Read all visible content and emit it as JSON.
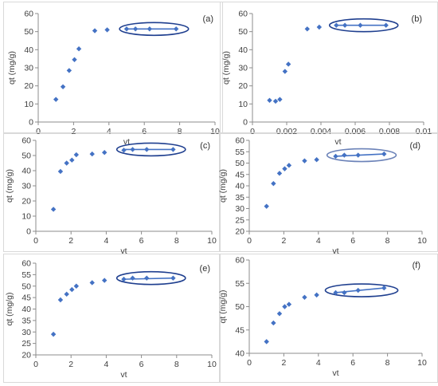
{
  "chart_data": [
    {
      "type": "scatter",
      "panel_label": "(a)",
      "xlabel": "vt",
      "ylabel": "qt (mg/g)",
      "xlim": [
        0,
        10
      ],
      "ylim": [
        0,
        60
      ],
      "xticks": [
        0,
        2,
        4,
        6,
        8,
        10
      ],
      "yticks": [
        0,
        10,
        20,
        30,
        40,
        50,
        60
      ],
      "tick_labels_x": [
        "0",
        "2",
        "4",
        "6",
        "8",
        "10"
      ],
      "tick_labels_y": [
        "0",
        "10",
        "20",
        "30",
        "40",
        "50",
        "60"
      ],
      "x": [
        1.0,
        1.4,
        1.75,
        2.05,
        2.3,
        3.2,
        3.9,
        5.0,
        5.5,
        6.3,
        7.8
      ],
      "y": [
        12.5,
        19.5,
        28.5,
        34.5,
        40.5,
        50.5,
        51,
        51.5,
        51.5,
        51.5,
        51.5
      ],
      "fit_line": {
        "x": [
          5.0,
          7.8
        ],
        "y": [
          51.5,
          51.5
        ]
      },
      "highlight_ellipse": {
        "x_range": [
          4.6,
          8.5
        ],
        "y_center": 51.5
      },
      "color": "#4472c4",
      "ellipse_color": "#1f3f8f",
      "grid": false
    },
    {
      "type": "scatter",
      "panel_label": "(b)",
      "xlabel": "vt",
      "ylabel": "qt (mg/g)",
      "xlim": [
        0,
        0.01
      ],
      "ylim": [
        0,
        60
      ],
      "xticks": [
        0,
        0.002,
        0.004,
        0.006,
        0.008,
        0.01
      ],
      "yticks": [
        0,
        10,
        20,
        30,
        40,
        50,
        60
      ],
      "tick_labels_x": [
        "0",
        "0.002",
        "0.004",
        "0.006",
        "0.008",
        "0.01"
      ],
      "tick_labels_y": [
        "0",
        "10",
        "20",
        "30",
        "40",
        "50",
        "60"
      ],
      "x": [
        0.001,
        0.00135,
        0.0016,
        0.0019,
        0.0021,
        0.0032,
        0.0039,
        0.0049,
        0.0054,
        0.0063,
        0.0078
      ],
      "y": [
        12,
        11.5,
        12.5,
        28,
        32,
        51.5,
        52.5,
        53.5,
        53.5,
        53.5,
        53.5
      ],
      "fit_line": {
        "x": [
          0.0049,
          0.0078
        ],
        "y": [
          53.5,
          53.5
        ]
      },
      "highlight_ellipse": {
        "x_range": [
          0.0045,
          0.0085
        ],
        "y_center": 53.5
      },
      "color": "#4472c4",
      "ellipse_color": "#1f3f8f",
      "grid": false
    },
    {
      "type": "scatter",
      "panel_label": "(c)",
      "xlabel": "vt",
      "ylabel": "qt (mg/g)",
      "xlim": [
        0,
        10
      ],
      "ylim": [
        0,
        60
      ],
      "xticks": [
        0,
        2,
        4,
        6,
        8,
        10
      ],
      "yticks": [
        0,
        10,
        20,
        30,
        40,
        50,
        60
      ],
      "tick_labels_x": [
        "0",
        "2",
        "4",
        "6",
        "8",
        "10"
      ],
      "tick_labels_y": [
        "0",
        "10",
        "20",
        "30",
        "40",
        "50",
        "60"
      ],
      "x": [
        1.0,
        1.4,
        1.75,
        2.05,
        2.3,
        3.2,
        3.9,
        5.0,
        5.5,
        6.3,
        7.8
      ],
      "y": [
        14.5,
        39.5,
        45,
        47,
        50.5,
        51,
        52,
        53.5,
        54,
        54,
        54
      ],
      "fit_line": {
        "x": [
          5.0,
          7.8
        ],
        "y": [
          54,
          54
        ]
      },
      "highlight_ellipse": {
        "x_range": [
          4.6,
          8.5
        ],
        "y_center": 54
      },
      "color": "#4472c4",
      "ellipse_color": "#1f3f8f",
      "grid": false
    },
    {
      "type": "scatter",
      "panel_label": "(d)",
      "xlabel": "vt",
      "ylabel": "qt (mg/g)",
      "xlim": [
        0,
        10
      ],
      "ylim": [
        20,
        60
      ],
      "xticks": [
        0,
        2,
        4,
        6,
        8,
        10
      ],
      "yticks": [
        20,
        25,
        30,
        35,
        40,
        45,
        50,
        55,
        60
      ],
      "tick_labels_x": [
        "0",
        "2",
        "4",
        "6",
        "8",
        "10"
      ],
      "tick_labels_y": [
        "20",
        "25",
        "30",
        "35",
        "40",
        "45",
        "50",
        "55",
        "60"
      ],
      "x": [
        1.0,
        1.4,
        1.75,
        2.05,
        2.3,
        3.2,
        3.9,
        5.0,
        5.5,
        6.3,
        7.8
      ],
      "y": [
        31,
        41,
        45.5,
        47.5,
        49,
        51,
        51.5,
        53,
        53.5,
        53.5,
        54
      ],
      "fit_line": {
        "x": [
          5.0,
          7.8
        ],
        "y": [
          53,
          54
        ]
      },
      "highlight_ellipse": {
        "x_range": [
          4.5,
          8.5
        ],
        "y_center": 53.5
      },
      "color": "#4472c4",
      "ellipse_color": "#6b82b8",
      "grid": false
    },
    {
      "type": "scatter",
      "panel_label": "(e)",
      "xlabel": "vt",
      "ylabel": "qt (mg/g)",
      "xlim": [
        0,
        10
      ],
      "ylim": [
        20,
        60
      ],
      "xticks": [
        0,
        2,
        4,
        6,
        8,
        10
      ],
      "yticks": [
        20,
        25,
        30,
        35,
        40,
        45,
        50,
        55,
        60
      ],
      "tick_labels_x": [
        "0",
        "2",
        "4",
        "6",
        "8",
        "10"
      ],
      "tick_labels_y": [
        "20",
        "25",
        "30",
        "35",
        "40",
        "45",
        "50",
        "55",
        "60"
      ],
      "x": [
        1.0,
        1.4,
        1.75,
        2.05,
        2.3,
        3.2,
        3.9,
        5.0,
        5.5,
        6.3,
        7.8
      ],
      "y": [
        29,
        44,
        46.5,
        48.5,
        50,
        51.5,
        52.5,
        53,
        53.5,
        53.5,
        53.5
      ],
      "fit_line": {
        "x": [
          5.0,
          7.8
        ],
        "y": [
          53,
          53.5
        ]
      },
      "highlight_ellipse": {
        "x_range": [
          4.6,
          8.5
        ],
        "y_center": 53.5
      },
      "color": "#4472c4",
      "ellipse_color": "#1f3f8f",
      "grid": false
    },
    {
      "type": "scatter",
      "panel_label": "(f)",
      "xlabel": "vt",
      "ylabel": "qt (mg/g)",
      "xlim": [
        0,
        10
      ],
      "ylim": [
        40,
        60
      ],
      "xticks": [
        0,
        2,
        4,
        6,
        8,
        10
      ],
      "yticks": [
        40,
        45,
        50,
        55,
        60
      ],
      "tick_labels_x": [
        "0",
        "2",
        "4",
        "6",
        "8",
        "10"
      ],
      "tick_labels_y": [
        "40",
        "45",
        "50",
        "55",
        "60"
      ],
      "x": [
        1.0,
        1.4,
        1.75,
        2.05,
        2.3,
        3.2,
        3.9,
        5.0,
        5.5,
        6.3,
        7.8
      ],
      "y": [
        42.5,
        46.5,
        48.5,
        50,
        50.5,
        52,
        52.5,
        53,
        53,
        53.5,
        54
      ],
      "fit_line": {
        "x": [
          5.0,
          7.8
        ],
        "y": [
          53,
          54
        ]
      },
      "highlight_ellipse": {
        "x_range": [
          4.4,
          8.6
        ],
        "y_center": 53.5
      },
      "color": "#4472c4",
      "ellipse_color": "#1f3f8f",
      "grid": false
    }
  ]
}
